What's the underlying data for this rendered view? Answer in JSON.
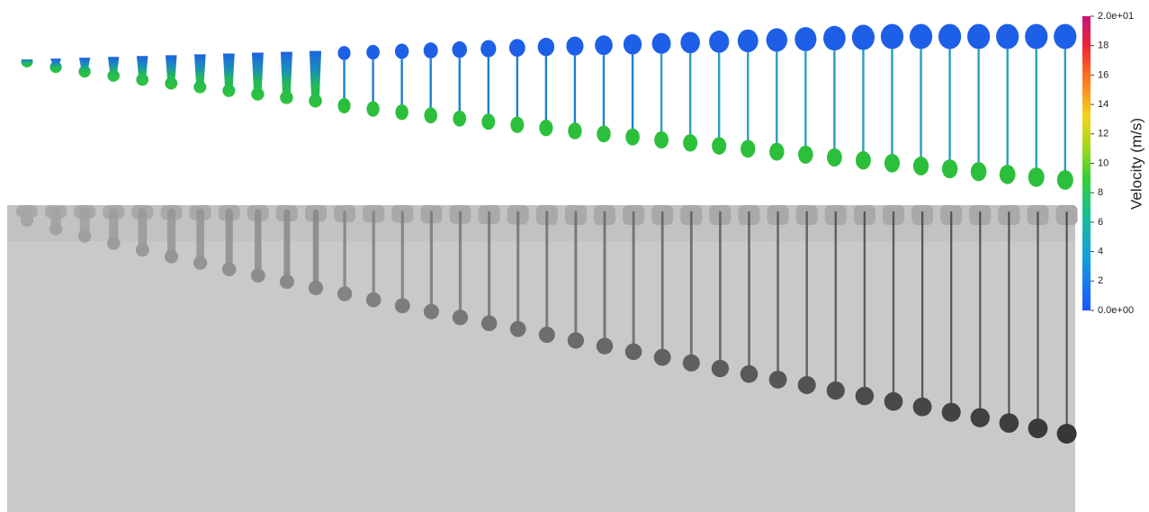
{
  "colorbar": {
    "label": "Velocity (m/s)",
    "range": [
      0,
      20
    ],
    "ticks": [
      {
        "value": 0,
        "label": "0.0e+00"
      },
      2,
      4,
      6,
      8,
      10,
      12,
      14,
      16,
      18,
      {
        "value": 20,
        "label": "2.0e+01"
      }
    ]
  }
}
